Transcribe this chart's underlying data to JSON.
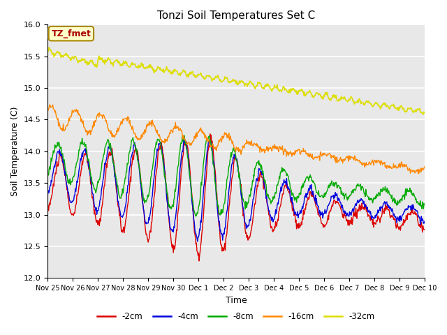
{
  "title": "Tonzi Soil Temperatures Set C",
  "xlabel": "Time",
  "ylabel": "Soil Temperature (C)",
  "ylim": [
    12.0,
    16.0
  ],
  "yticks": [
    12.0,
    12.5,
    13.0,
    13.5,
    14.0,
    14.5,
    15.0,
    15.5,
    16.0
  ],
  "xtick_labels": [
    "Nov 25",
    "Nov 26",
    "Nov 27",
    "Nov 28",
    "Nov 29",
    "Nov 30",
    "Dec 1",
    "Dec 2",
    "Dec 3",
    "Dec 4",
    "Dec 5",
    "Dec 6",
    "Dec 7",
    "Dec 8",
    "Dec 9",
    "Dec 10"
  ],
  "series_colors": [
    "#dd0000",
    "#0000dd",
    "#00aa00",
    "#ff8800",
    "#dddd00"
  ],
  "series_labels": [
    "-2cm",
    "-4cm",
    "-8cm",
    "-16cm",
    "-32cm"
  ],
  "background_color": "#e8e8e8",
  "annotation_text": "TZ_fmet",
  "annotation_color": "#aa0000",
  "annotation_bg": "#ffffcc",
  "annotation_edge": "#aa8800",
  "n_days": 15,
  "pts_per_day": 48
}
